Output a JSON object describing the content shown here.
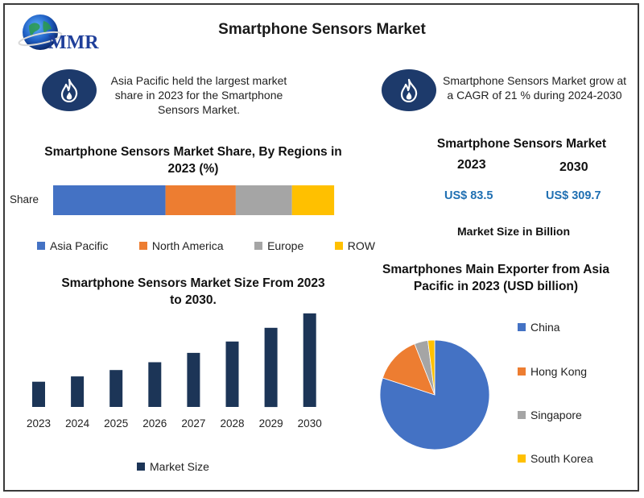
{
  "logo": {
    "text": "MMR",
    "icon": "globe-icon"
  },
  "title": "Smartphone Sensors Market",
  "notes": [
    {
      "text": "Asia Pacific held the largest market share in 2023 for the Smartphone Sensors Market.",
      "icon": "flame-icon"
    },
    {
      "text": "Smartphone Sensors Market grow at a CAGR of 21 % during 2024-2030",
      "icon": "flame-icon"
    }
  ],
  "colors": {
    "asia": "#4472c4",
    "north_america": "#ed7d31",
    "europe": "#a5a5a5",
    "row": "#ffc000",
    "bar": "#1c3557",
    "badge": "#1d3a6b",
    "usd": "#1f6fb2"
  },
  "summary": {
    "title": "Smartphone Sensors Market",
    "years": [
      "2023",
      "2030"
    ],
    "values": [
      "US$ 83.5",
      "US$ 309.7"
    ],
    "unit": "Market Size in Billion"
  },
  "chart_data": [
    {
      "type": "bar",
      "orientation": "horizontal-stacked",
      "title": "Smartphone Sensors Market Share, By Regions in 2023 (%)",
      "categories": [
        "Share"
      ],
      "series": [
        {
          "name": "Asia Pacific",
          "values": [
            40
          ]
        },
        {
          "name": "North America",
          "values": [
            25
          ]
        },
        {
          "name": "Europe",
          "values": [
            20
          ]
        },
        {
          "name": "ROW",
          "values": [
            15
          ]
        }
      ],
      "legend": "bottom"
    },
    {
      "type": "bar",
      "title": "Smartphone Sensors Market Size From 2023 to 2030.",
      "categories": [
        "2023",
        "2024",
        "2025",
        "2026",
        "2027",
        "2028",
        "2029",
        "2030"
      ],
      "series": [
        {
          "name": "Market Size",
          "values": [
            83.5,
            101.0,
            122.2,
            147.9,
            179.0,
            216.6,
            262.0,
            309.7
          ]
        }
      ],
      "ylim": [
        0,
        320
      ],
      "legend": "bottom",
      "grid": false
    },
    {
      "type": "pie",
      "title": "Smartphones Main Exporter from Asia Pacific in 2023 (USD billion)",
      "labels": [
        "China",
        "Hong Kong",
        "Singapore",
        "South Korea"
      ],
      "values": [
        80,
        14,
        4,
        2
      ],
      "legend": "right"
    }
  ]
}
